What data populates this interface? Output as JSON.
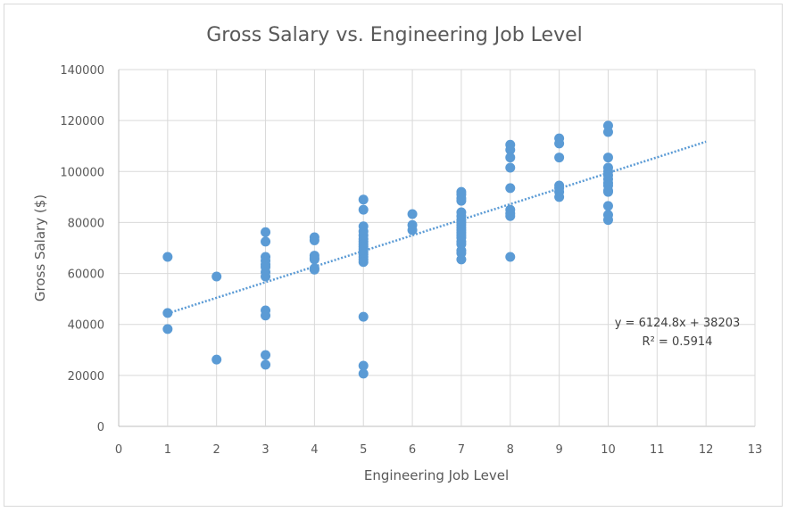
{
  "chart_data": {
    "type": "scatter",
    "title": "Gross Salary vs. Engineering Job Level",
    "xlabel": "Engineering Job Level",
    "ylabel": "Gross Salary ($)",
    "xlim": [
      0,
      13
    ],
    "ylim": [
      0,
      140000
    ],
    "x_ticks": [
      0,
      1,
      2,
      3,
      4,
      5,
      6,
      7,
      8,
      9,
      10,
      11,
      12,
      13
    ],
    "y_ticks": [
      0,
      20000,
      40000,
      60000,
      80000,
      100000,
      120000,
      140000
    ],
    "grid": true,
    "marker_color": "#5b9bd5",
    "trendline": {
      "type": "linear",
      "slope": 6124.8,
      "intercept": 38203,
      "x_range": [
        1,
        12
      ],
      "style": "dotted",
      "equation_label": "y = 6124.8x + 38203",
      "r2_label": "R² = 0.5914"
    },
    "points": [
      [
        1,
        66500
      ],
      [
        1,
        44500
      ],
      [
        1,
        38200
      ],
      [
        2,
        58800
      ],
      [
        2,
        26200
      ],
      [
        3,
        76200
      ],
      [
        3,
        72500
      ],
      [
        3,
        66500
      ],
      [
        3,
        65000
      ],
      [
        3,
        63500
      ],
      [
        3,
        62500
      ],
      [
        3,
        60500
      ],
      [
        3,
        58800
      ],
      [
        3,
        45500
      ],
      [
        3,
        43500
      ],
      [
        3,
        28000
      ],
      [
        3,
        24200
      ],
      [
        4,
        74200
      ],
      [
        4,
        73000
      ],
      [
        4,
        67000
      ],
      [
        4,
        66000
      ],
      [
        4,
        65500
      ],
      [
        4,
        62000
      ],
      [
        4,
        61500
      ],
      [
        5,
        89000
      ],
      [
        5,
        85000
      ],
      [
        5,
        78500
      ],
      [
        5,
        76500
      ],
      [
        5,
        75000
      ],
      [
        5,
        73500
      ],
      [
        5,
        72500
      ],
      [
        5,
        71500
      ],
      [
        5,
        70500
      ],
      [
        5,
        69500
      ],
      [
        5,
        68500
      ],
      [
        5,
        67500
      ],
      [
        5,
        66500
      ],
      [
        5,
        65500
      ],
      [
        5,
        64500
      ],
      [
        5,
        43000
      ],
      [
        5,
        23800
      ],
      [
        5,
        20700
      ],
      [
        6,
        83300
      ],
      [
        6,
        79000
      ],
      [
        6,
        77000
      ],
      [
        7,
        92000
      ],
      [
        7,
        91000
      ],
      [
        7,
        89500
      ],
      [
        7,
        88500
      ],
      [
        7,
        84000
      ],
      [
        7,
        82500
      ],
      [
        7,
        81000
      ],
      [
        7,
        80000
      ],
      [
        7,
        79000
      ],
      [
        7,
        78000
      ],
      [
        7,
        77000
      ],
      [
        7,
        76000
      ],
      [
        7,
        75000
      ],
      [
        7,
        74000
      ],
      [
        7,
        72500
      ],
      [
        7,
        71500
      ],
      [
        7,
        69000
      ],
      [
        7,
        68000
      ],
      [
        7,
        65500
      ],
      [
        8,
        110500
      ],
      [
        8,
        108500
      ],
      [
        8,
        105500
      ],
      [
        8,
        101500
      ],
      [
        8,
        93500
      ],
      [
        8,
        85000
      ],
      [
        8,
        83500
      ],
      [
        8,
        82500
      ],
      [
        8,
        66500
      ],
      [
        9,
        113000
      ],
      [
        9,
        111000
      ],
      [
        9,
        105500
      ],
      [
        9,
        94500
      ],
      [
        9,
        93500
      ],
      [
        9,
        92000
      ],
      [
        9,
        90000
      ],
      [
        10,
        118000
      ],
      [
        10,
        115500
      ],
      [
        10,
        105500
      ],
      [
        10,
        101500
      ],
      [
        10,
        100000
      ],
      [
        10,
        98500
      ],
      [
        10,
        97000
      ],
      [
        10,
        95500
      ],
      [
        10,
        94500
      ],
      [
        10,
        92500
      ],
      [
        10,
        92000
      ],
      [
        10,
        86500
      ],
      [
        10,
        83000
      ],
      [
        10,
        81000
      ]
    ]
  }
}
